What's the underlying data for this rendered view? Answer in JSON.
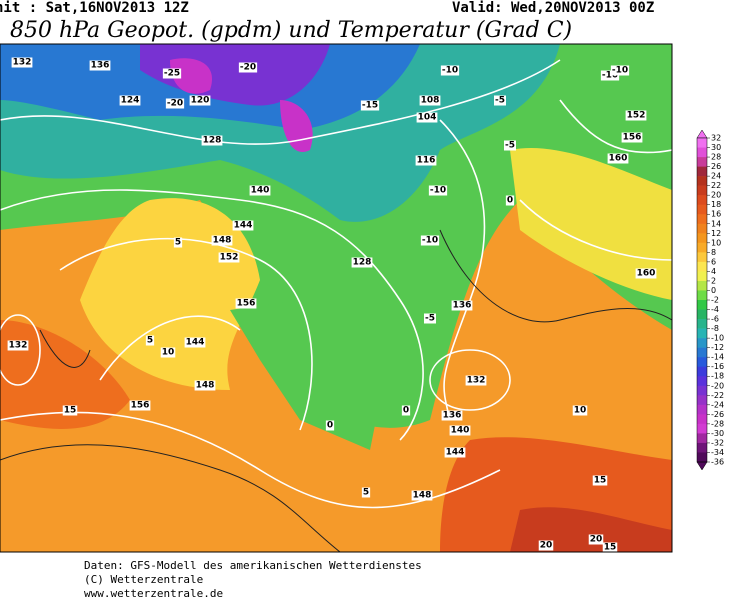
{
  "header": {
    "init": "nit : Sat,16NOV2013 12Z",
    "valid": "Valid: Wed,20NOV2013 00Z",
    "title": "850 hPa Geopot. (gpdm) und Temperatur (Grad C)"
  },
  "map_labels": [
    136,
    132,
    124,
    120,
    128,
    -25,
    -20,
    -20,
    -15,
    -10,
    108,
    104,
    -10,
    -5,
    152,
    156,
    160,
    116,
    -10,
    140,
    -10,
    144,
    148,
    152,
    5,
    156,
    136,
    132,
    5,
    10,
    144,
    148,
    156,
    15,
    0,
    140,
    136,
    132,
    128,
    -5,
    0,
    144,
    148,
    5,
    10,
    15,
    20,
    -10,
    -5,
    0,
    160,
    20,
    15
  ],
  "colorbar": {
    "ticks": [
      32,
      30,
      28,
      26,
      24,
      22,
      20,
      18,
      16,
      14,
      12,
      10,
      8,
      6,
      4,
      2,
      0,
      -2,
      -4,
      -6,
      -8,
      -10,
      -12,
      -14,
      -16,
      -18,
      -20,
      -22,
      -24,
      -26,
      -28,
      -30,
      -32,
      -34,
      -36
    ],
    "colors": [
      "#f070f0",
      "#e050d8",
      "#c83c9a",
      "#a0283c",
      "#b4321e",
      "#c83c1e",
      "#dc4b1e",
      "#e65a1e",
      "#ee6e1e",
      "#f0821e",
      "#f4961e",
      "#f8aa28",
      "#fcc83c",
      "#fce650",
      "#f0f050",
      "#b4e646",
      "#6edc46",
      "#32c846",
      "#28b464",
      "#28b48c",
      "#28b4b4",
      "#2896c8",
      "#2878d2",
      "#285adc",
      "#3c3cdc",
      "#5a32dc",
      "#7832d2",
      "#9632c8",
      "#b432c8",
      "#c832c8",
      "#d23cd2",
      "#a028a0",
      "#6e1478",
      "#500a5a"
    ]
  },
  "footer": {
    "line1": "Daten: GFS-Modell des amerikanischen Wetterdienstes",
    "line2": "(C) Wetterzentrale",
    "line3": "www.wetterzentrale.de"
  }
}
